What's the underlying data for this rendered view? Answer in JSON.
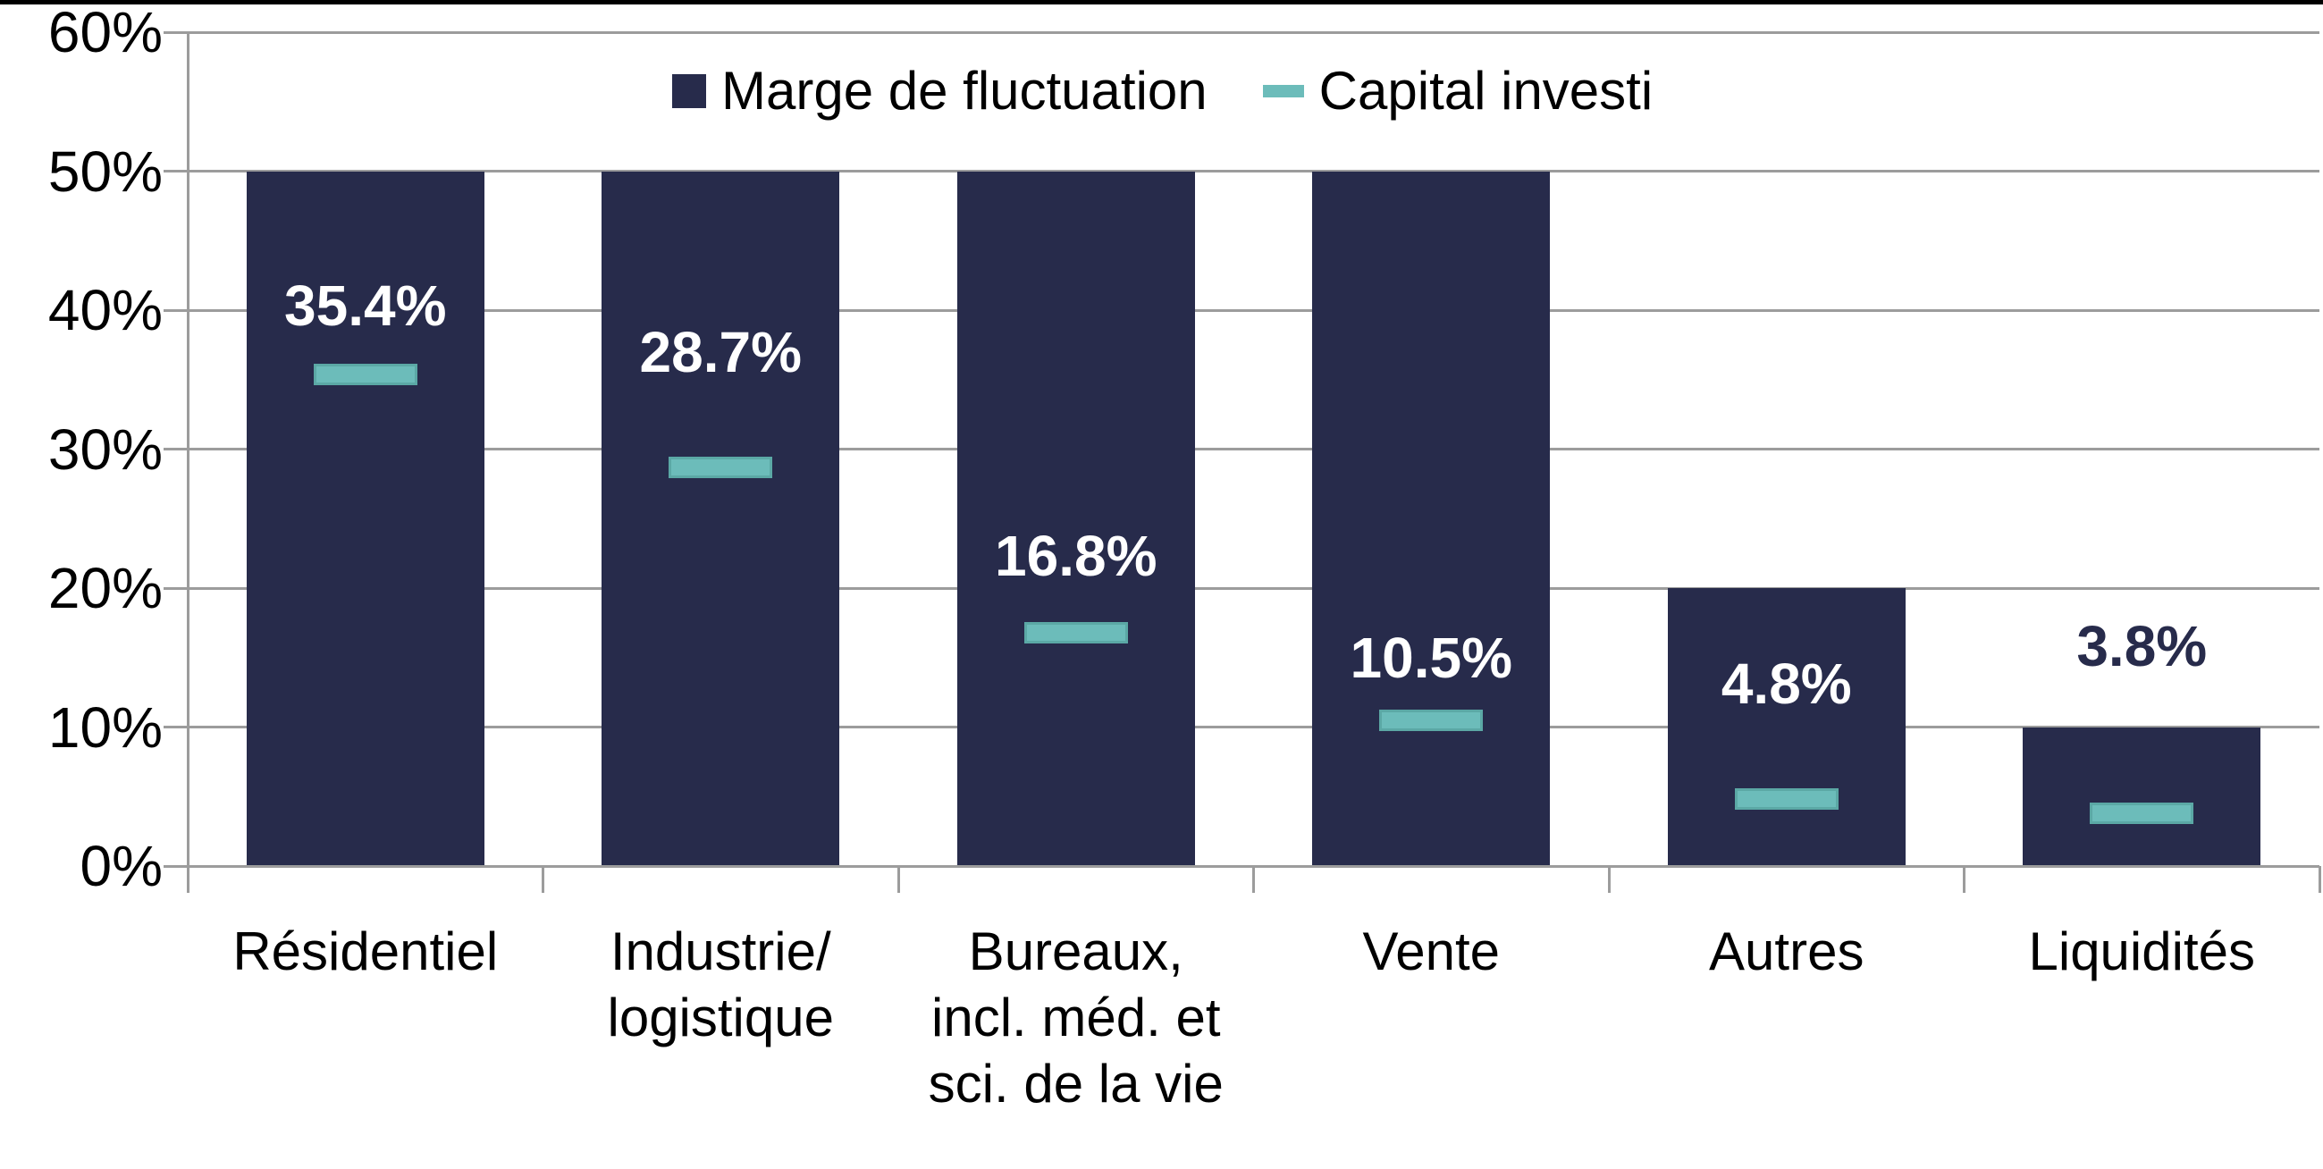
{
  "page": {
    "background": "#FFFFFF",
    "top_border_color": "#000000"
  },
  "chart_data": {
    "type": "bar",
    "title": "",
    "xlabel": "",
    "ylabel": "",
    "categories": [
      {
        "label": "Résidentiel",
        "lines": [
          "Résidentiel"
        ]
      },
      {
        "label": "Industrie/logistique",
        "lines": [
          "Industrie/",
          "logistique"
        ]
      },
      {
        "label": "Bureaux, incl. méd. et sci. de la vie",
        "lines": [
          "Bureaux,",
          "incl. méd. et",
          "sci. de la vie"
        ]
      },
      {
        "label": "Vente",
        "lines": [
          "Vente"
        ]
      },
      {
        "label": "Autres",
        "lines": [
          "Autres"
        ]
      },
      {
        "label": "Liquidités",
        "lines": [
          "Liquidités"
        ]
      }
    ],
    "series": [
      {
        "name": "Marge de fluctuation",
        "marker": "square",
        "render": "bar",
        "color": "#272B4B",
        "values": [
          50,
          50,
          50,
          50,
          20,
          10
        ]
      },
      {
        "name": "Capital investi",
        "marker": "dash",
        "render": "dash",
        "color": "#6CBCBA",
        "border_color": "#5BA8A5",
        "values": [
          35.4,
          28.7,
          16.8,
          10.5,
          4.8,
          3.8
        ],
        "data_labels": [
          {
            "text": "35.4%",
            "color": "#FFFFFF",
            "y_pct": 40.3
          },
          {
            "text": "28.7%",
            "color": "#FFFFFF",
            "y_pct": 37.0
          },
          {
            "text": "16.8%",
            "color": "#FFFFFF",
            "y_pct": 22.3
          },
          {
            "text": "10.5%",
            "color": "#FFFFFF",
            "y_pct": 15.0
          },
          {
            "text": "4.8%",
            "color": "#FFFFFF",
            "y_pct": 13.1
          },
          {
            "text": "3.8%",
            "color": "#272B4B",
            "y_pct": 15.8
          }
        ]
      }
    ],
    "y_axis": {
      "min": 0,
      "max": 60,
      "step": 10,
      "tick_labels": [
        "0%",
        "10%",
        "20%",
        "30%",
        "40%",
        "50%",
        "60%"
      ]
    },
    "legend": {
      "position": "top-center"
    },
    "grid": true,
    "colors": {
      "gridline": "#9C9C9C",
      "axis_text": "#000000"
    }
  }
}
